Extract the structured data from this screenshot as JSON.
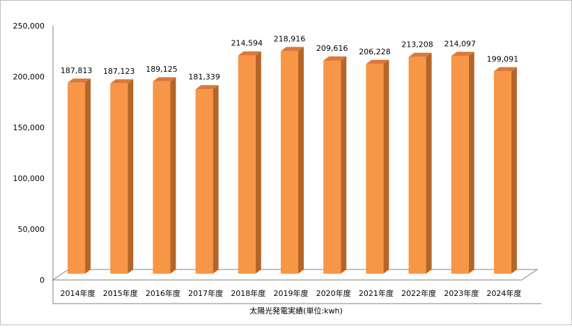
{
  "colors": {
    "bar_front": "#F79646",
    "bar_side": "#B56527",
    "bar_top": "#D9793A",
    "axis": "#808080",
    "grid_wall": "#808080"
  },
  "chart_data": {
    "type": "bar",
    "style": "3d-column",
    "categories": [
      "2014年度",
      "2015年度",
      "2016年度",
      "2017年度",
      "2018年度",
      "2019年度",
      "2020年度",
      "2021年度",
      "2022年度",
      "2023年度",
      "2024年度"
    ],
    "values": [
      187813,
      187123,
      189125,
      181339,
      214594,
      218916,
      209616,
      206228,
      213208,
      214097,
      199091
    ],
    "value_labels": [
      "187,813",
      "187,123",
      "189,125",
      "181,339",
      "214,594",
      "218,916",
      "209,616",
      "206,228",
      "213,208",
      "214,097",
      "199,091"
    ],
    "y_ticks": [
      "0",
      "50,000",
      "100,000",
      "150,000",
      "200,000",
      "250,000"
    ],
    "ylim": [
      0,
      250000
    ],
    "title": "",
    "xlabel": "太陽光発電実績(単位:kwh)",
    "ylabel": "",
    "grid": false,
    "legend": "none"
  }
}
